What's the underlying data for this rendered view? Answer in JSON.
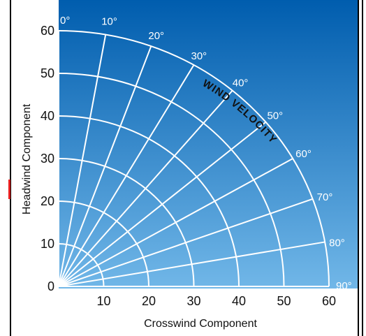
{
  "chart_data": {
    "type": "polar-grid",
    "xlabel": "Crosswind Component",
    "ylabel": "Headwind Component",
    "xlim": [
      0,
      60
    ],
    "ylim": [
      0,
      60
    ],
    "x_ticks": [
      "10",
      "20",
      "30",
      "40",
      "50",
      "60"
    ],
    "y_ticks": [
      "0",
      "10",
      "20",
      "30",
      "40",
      "50",
      "60"
    ],
    "arc_radii": [
      10,
      20,
      30,
      40,
      50,
      60
    ],
    "angles": [
      0,
      10,
      20,
      30,
      40,
      50,
      60,
      70,
      80,
      90
    ],
    "angle_labels": [
      "0°",
      "10°",
      "20°",
      "30°",
      "40°",
      "50°",
      "60°",
      "70°",
      "80°",
      "90°"
    ],
    "annotation": "WIND VELOCITY",
    "grid": true
  },
  "colors": {
    "background_top": "#005dae",
    "background_bottom": "#71b7e8",
    "grid": "#ffffff",
    "label_text": "#111111",
    "frame": "#000000",
    "marker": "#e41e1e"
  }
}
